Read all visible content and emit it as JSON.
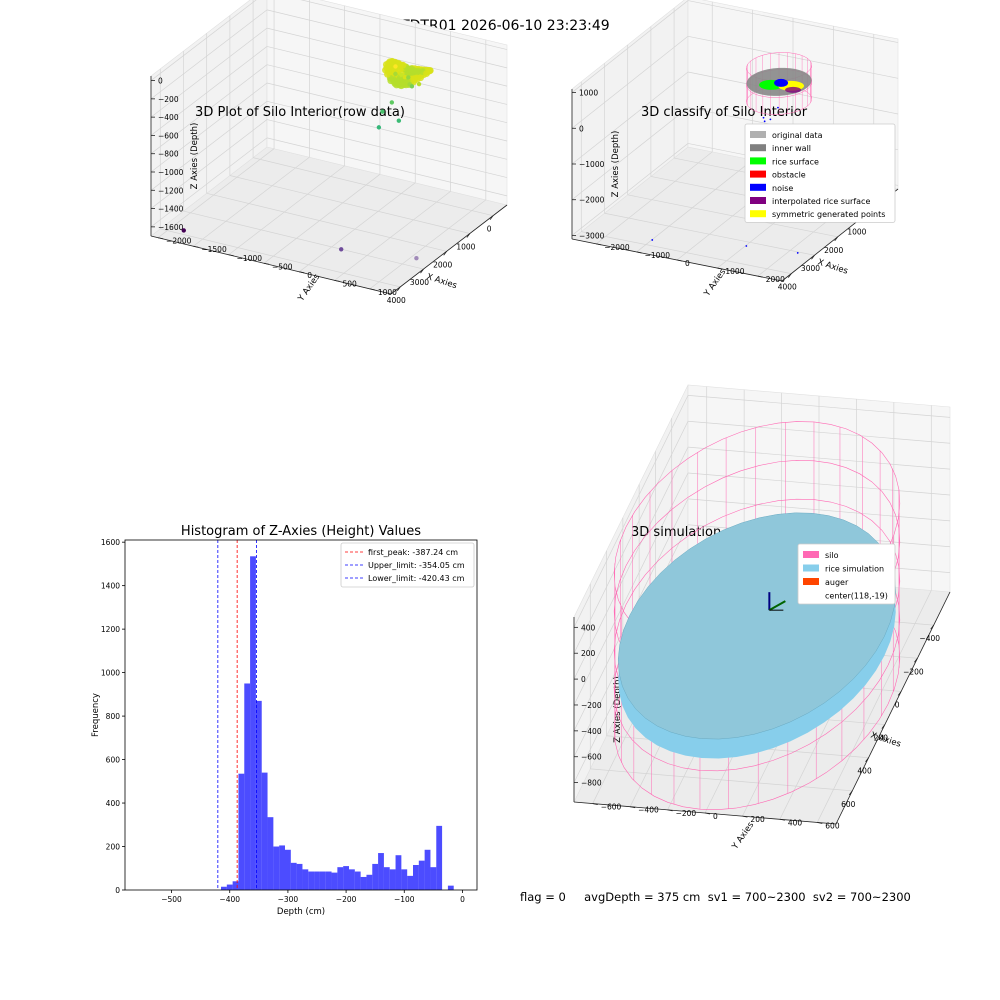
{
  "figure": {
    "suptitle": "DTDTR01 2026-06-10 23:23:49",
    "status_line": "flag = 0     avgDepth = 375 cm  sv1 = 700~2300  sv2 = 700~2300"
  },
  "chart_data": [
    {
      "type": "scatter",
      "projection": "3d",
      "title": "3D Plot of Silo Interior(row data)",
      "xlabel": "X Axies",
      "ylabel": "Y Axies",
      "zlabel": "Z Axies (Depth)",
      "xticks": [
        0,
        1000,
        2000,
        3000,
        4000
      ],
      "yticks": [
        -2000,
        -1500,
        -1000,
        -500,
        0,
        500,
        1000
      ],
      "zticks": [
        0,
        -200,
        -400,
        -600,
        -800,
        -1000,
        -1200,
        -1400,
        -1600
      ],
      "xlim": [
        -600,
        4400
      ],
      "ylim": [
        -2100,
        1300
      ],
      "zlim": [
        -1700,
        50
      ],
      "colormap": "viridis",
      "points": [
        {
          "x": 0,
          "y": 0,
          "z": -400,
          "color": "#c9e524"
        },
        {
          "x": 150,
          "y": 100,
          "z": -380,
          "color": "#d8e219"
        },
        {
          "x": -50,
          "y": -100,
          "z": -420,
          "color": "#a8db34"
        },
        {
          "x": 100,
          "y": -50,
          "z": -300,
          "color": "#fde725"
        },
        {
          "x": -150,
          "y": 50,
          "z": -450,
          "color": "#95d840"
        },
        {
          "x": 300,
          "y": 350,
          "z": -380,
          "color": "#b8de29"
        },
        {
          "x": 250,
          "y": 200,
          "z": -420,
          "color": "#a2da37"
        },
        {
          "x": 0,
          "y": 150,
          "z": -500,
          "color": "#7ad151"
        },
        {
          "x": -200,
          "y": -200,
          "z": -780,
          "color": "#5ec962"
        },
        {
          "x": -100,
          "y": -300,
          "z": -880,
          "color": "#4ac16d"
        },
        {
          "x": -350,
          "y": -150,
          "z": -1000,
          "color": "#3bbb75"
        },
        {
          "x": -250,
          "y": -400,
          "z": -1100,
          "color": "#35b779"
        },
        {
          "x": 3000,
          "y": 1200,
          "z": -1600,
          "color": "#a08ab8"
        },
        {
          "x": 3200,
          "y": 200,
          "z": -1650,
          "color": "#6f4c9b"
        },
        {
          "x": 3900,
          "y": -1800,
          "z": -1680,
          "color": "#440154"
        }
      ]
    },
    {
      "type": "scatter",
      "projection": "3d",
      "title": "3D classify of Silo Interior",
      "xlabel": "X Axies",
      "ylabel": "Y Axies",
      "zlabel": "Z Axies (Depth)",
      "xticks": [
        0,
        1000,
        2000,
        3000,
        4000
      ],
      "yticks": [
        -2000,
        -1000,
        0,
        1000,
        2000
      ],
      "zticks": [
        1000,
        0,
        -1000,
        -2000,
        -3000
      ],
      "xlim": [
        -600,
        4400
      ],
      "ylim": [
        -2600,
        2600
      ],
      "zlim": [
        -3100,
        1100
      ],
      "legend": {
        "position": "upper right",
        "entries": [
          {
            "label": "original data",
            "color": "#b0b0b0"
          },
          {
            "label": "inner wall",
            "color": "#808080"
          },
          {
            "label": "rice surface",
            "color": "#00ff00"
          },
          {
            "label": "obstacle",
            "color": "#ff0000"
          },
          {
            "label": "noise",
            "color": "#0000ff"
          },
          {
            "label": "interpolated rice surface",
            "color": "#800080"
          },
          {
            "label": "symmetric generated points",
            "color": "#ffff00"
          }
        ]
      },
      "noise_points": [
        {
          "x": -300,
          "y": -200,
          "z": -1300
        },
        {
          "x": -200,
          "y": -500,
          "z": -1600
        },
        {
          "x": 100,
          "y": -300,
          "z": -1500
        },
        {
          "x": 200,
          "y": -100,
          "z": -1350
        },
        {
          "x": 3200,
          "y": 2300,
          "z": -3000
        },
        {
          "x": 3500,
          "y": 1200,
          "z": -2900
        },
        {
          "x": 3900,
          "y": -900,
          "z": -3000
        }
      ],
      "silo": {
        "radius": 700,
        "top": 50,
        "bottom": -900,
        "surface_depth": -380
      }
    },
    {
      "type": "bar",
      "subtype": "histogram",
      "title": "Histogram of Z-Axies (Height) Values",
      "xlabel": "Depth (cm)",
      "ylabel": "Frequency",
      "xlim": [
        -580,
        25
      ],
      "ylim": [
        0,
        1610
      ],
      "xticks": [
        -500,
        -400,
        -300,
        -200,
        -100,
        0
      ],
      "yticks": [
        0,
        200,
        400,
        600,
        800,
        1000,
        1200,
        1400,
        1600
      ],
      "bar_color": "#0000ff",
      "bin_width": 10,
      "bins": [
        {
          "x0": -450,
          "count": 15
        },
        {
          "x0": -440,
          "count": 25
        },
        {
          "x0": -430,
          "count": 40
        },
        {
          "x0": -420,
          "count": 535
        },
        {
          "x0": -410,
          "count": 950
        },
        {
          "x0": -400,
          "count": 1535
        },
        {
          "x0": -390,
          "count": 870
        },
        {
          "x0": -380,
          "count": 540
        },
        {
          "x0": -370,
          "count": 335
        },
        {
          "x0": -360,
          "count": 200
        },
        {
          "x0": -350,
          "count": 205
        },
        {
          "x0": -340,
          "count": 185
        },
        {
          "x0": -330,
          "count": 125
        },
        {
          "x0": -320,
          "count": 120
        },
        {
          "x0": -310,
          "count": 95
        },
        {
          "x0": -300,
          "count": 85
        },
        {
          "x0": -290,
          "count": 85
        },
        {
          "x0": -280,
          "count": 85
        },
        {
          "x0": -270,
          "count": 85
        },
        {
          "x0": -260,
          "count": 80
        },
        {
          "x0": -250,
          "count": 105
        },
        {
          "x0": -240,
          "count": 110
        },
        {
          "x0": -230,
          "count": 95
        },
        {
          "x0": -220,
          "count": 85
        },
        {
          "x0": -210,
          "count": 60
        },
        {
          "x0": -200,
          "count": 70
        },
        {
          "x0": -190,
          "count": 120
        },
        {
          "x0": -180,
          "count": 170
        },
        {
          "x0": -170,
          "count": 105
        },
        {
          "x0": -160,
          "count": 95
        },
        {
          "x0": -150,
          "count": 160
        },
        {
          "x0": -140,
          "count": 95
        },
        {
          "x0": -130,
          "count": 65
        },
        {
          "x0": -120,
          "count": 115
        },
        {
          "x0": -110,
          "count": 135
        },
        {
          "x0": -100,
          "count": 185
        },
        {
          "x0": -90,
          "count": 105
        },
        {
          "x0": -80,
          "count": 295
        },
        {
          "x0": -70,
          "count": 0
        },
        {
          "x0": -60,
          "count": 20
        }
      ],
      "bin_offset": 35,
      "vlines": [
        {
          "label": "first_peak: -387.24 cm",
          "x": -387.24,
          "color": "#ff0000"
        },
        {
          "label": "Upper_limit: -354.05 cm",
          "x": -354.05,
          "color": "#0000ff"
        },
        {
          "label": "Lower_limit: -420.43 cm",
          "x": -420.43,
          "color": "#0000ff"
        }
      ],
      "legend": {
        "position": "upper right"
      }
    },
    {
      "type": "scatter",
      "projection": "3d",
      "title": "3D simulation of Silo Interior",
      "xlabel": "X Axies",
      "ylabel": "Y Axies",
      "zlabel": "Z Axies (Depth)",
      "xticks": [
        -400,
        -200,
        0,
        200,
        400,
        600
      ],
      "yticks": [
        -600,
        -400,
        -200,
        0,
        200,
        400,
        600
      ],
      "zticks": [
        400,
        200,
        0,
        -200,
        -400,
        -600,
        -800
      ],
      "xlim": [
        -600,
        800
      ],
      "ylim": [
        -700,
        700
      ],
      "zlim": [
        -950,
        480
      ],
      "legend": {
        "position": "upper right",
        "entries": [
          {
            "label": "silo",
            "color": "#ff69b4"
          },
          {
            "label": "rice simulation",
            "color": "#87ceeb"
          },
          {
            "label": "auger",
            "color": "#ff4500"
          },
          {
            "label": "center(118,-19)",
            "color": ""
          }
        ]
      },
      "silo": {
        "radius": 700,
        "top": 300,
        "bottom": -900,
        "center": [
          118,
          -19
        ]
      },
      "rice_surface_depth": -380
    }
  ]
}
